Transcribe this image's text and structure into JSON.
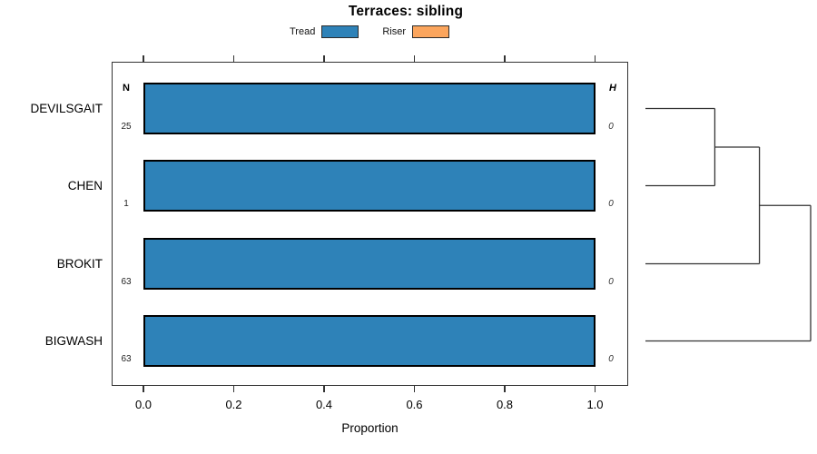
{
  "title": "Terraces: sibling",
  "legend": {
    "items": [
      {
        "label": "Tread",
        "color": "#2e82b8"
      },
      {
        "label": "Riser",
        "color": "#fba55d"
      }
    ]
  },
  "chart_data": {
    "type": "bar",
    "orientation": "horizontal",
    "title": "Terraces: sibling",
    "xlabel": "Proportion",
    "xlim": [
      0.0,
      1.0
    ],
    "x_ticks": [
      {
        "label": "0.0",
        "value": 0.0
      },
      {
        "label": "0.2",
        "value": 0.2
      },
      {
        "label": "0.4",
        "value": 0.4
      },
      {
        "label": "0.6",
        "value": 0.6
      },
      {
        "label": "0.8",
        "value": 0.8
      },
      {
        "label": "1.0",
        "value": 1.0
      }
    ],
    "categories": [
      "DEVILSGAIT",
      "CHEN",
      "BROKIT",
      "BIGWASH"
    ],
    "series": [
      {
        "name": "Tread",
        "color": "#2e82b8",
        "values": [
          1.0,
          1.0,
          1.0,
          1.0
        ]
      },
      {
        "name": "Riser",
        "color": "#fba55d",
        "values": [
          0.0,
          0.0,
          0.0,
          0.0
        ]
      }
    ],
    "n_column": {
      "header": "N",
      "values": [
        "25",
        "1",
        "63",
        "63"
      ]
    },
    "h_column": {
      "header": "H",
      "values": [
        "0",
        "0",
        "0",
        "0"
      ]
    },
    "grid": false,
    "legend_position": "top-center",
    "dendrogram": {
      "side": "right",
      "leaves": [
        "DEVILSGAIT",
        "CHEN",
        "BROKIT",
        "BIGWASH"
      ],
      "merges": [
        {
          "a": "DEVILSGAIT",
          "b": "CHEN",
          "height": 0.42
        },
        {
          "a": "merge0",
          "b": "BROKIT",
          "height": 0.69
        },
        {
          "a": "merge1",
          "b": "BIGWASH",
          "height": 1.0
        }
      ]
    }
  }
}
